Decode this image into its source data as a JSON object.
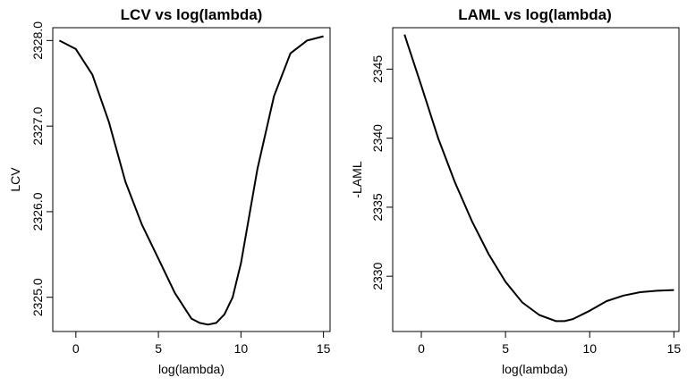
{
  "chart_data": [
    {
      "type": "line",
      "title": "LCV vs log(lambda)",
      "xlabel": "log(lambda)",
      "ylabel": "LCV",
      "xlim": [
        -1.4,
        15.4
      ],
      "ylim": [
        2324.6,
        2328.15
      ],
      "xticks": [
        0,
        5,
        10,
        15
      ],
      "yticks": [
        2325.0,
        2326.0,
        2327.0,
        2328.0
      ],
      "ytick_labels": [
        "2325.0",
        "2326.0",
        "2327.0",
        "2328.0"
      ],
      "grid": false,
      "series": [
        {
          "x": [
            -1,
            0,
            1,
            2,
            3,
            4,
            5,
            6,
            7,
            7.5,
            8,
            8.5,
            9,
            9.5,
            10,
            11,
            12,
            13,
            14,
            15
          ],
          "y": [
            2328.0,
            2327.9,
            2327.6,
            2327.05,
            2326.35,
            2325.85,
            2325.45,
            2325.05,
            2324.75,
            2324.7,
            2324.68,
            2324.7,
            2324.8,
            2325.0,
            2325.4,
            2326.5,
            2327.35,
            2327.85,
            2328.0,
            2328.05
          ]
        }
      ]
    },
    {
      "type": "line",
      "title": "LAML vs log(lambda)",
      "xlabel": "log(lambda)",
      "ylabel": "-LAML",
      "xlim": [
        -1.7,
        15.3
      ],
      "ylim": [
        2326.0,
        2348.0
      ],
      "xticks": [
        0,
        5,
        10,
        15
      ],
      "yticks": [
        2330,
        2335,
        2340,
        2345
      ],
      "ytick_labels": [
        "2330",
        "2335",
        "2340",
        "2345"
      ],
      "grid": false,
      "series": [
        {
          "x": [
            -1,
            0,
            1,
            2,
            3,
            4,
            5,
            6,
            7,
            8,
            8.5,
            9,
            10,
            11,
            12,
            13,
            14,
            15
          ],
          "y": [
            2347.5,
            2343.8,
            2340.0,
            2336.8,
            2334.0,
            2331.6,
            2329.6,
            2328.1,
            2327.2,
            2326.75,
            2326.75,
            2326.9,
            2327.5,
            2328.2,
            2328.6,
            2328.85,
            2328.95,
            2329.0
          ]
        }
      ]
    }
  ]
}
